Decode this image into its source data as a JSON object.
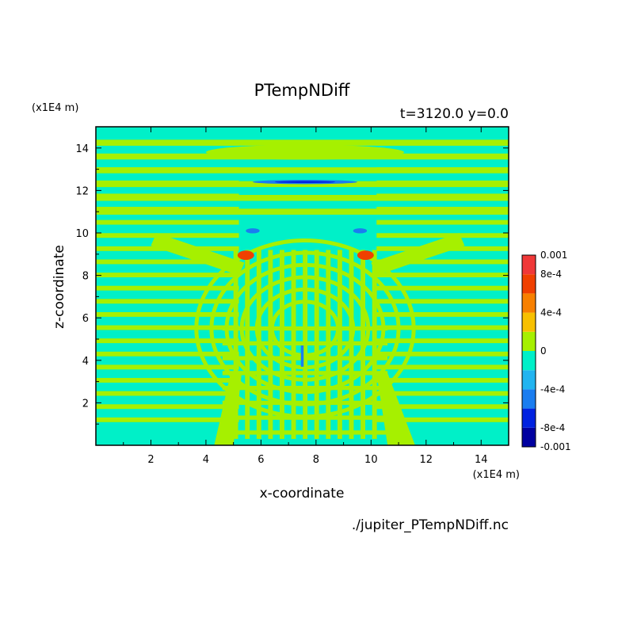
{
  "chart_data": {
    "type": "heatmap",
    "title": "PTempNDiff",
    "subtitle": "t=3120.0 y=0.0",
    "xlabel": "x-coordinate",
    "ylabel": "z-coordinate",
    "x_unit": "(x1E4 m)",
    "y_unit": "(x1E4 m)",
    "source_file": "./jupiter_PTempNDiff.nc",
    "xlim": [
      0,
      15
    ],
    "ylim": [
      0,
      15
    ],
    "x_ticks": [
      2,
      4,
      6,
      8,
      10,
      12,
      14
    ],
    "y_ticks": [
      2,
      4,
      6,
      8,
      10,
      12,
      14
    ],
    "colorbar": {
      "levels": [
        -0.001,
        -0.0008,
        -0.0006,
        -0.0004,
        -0.0002,
        0,
        0.0002,
        0.0004,
        0.0006,
        0.0008,
        0.001
      ],
      "colors": [
        "#0000a0",
        "#0022e0",
        "#1a7df0",
        "#22b4f0",
        "#00f0c8",
        "#a6f000",
        "#f8c000",
        "#f88000",
        "#f04000",
        "#f03838"
      ],
      "tick_labels": [
        "0.001",
        "8e-4",
        "4e-4",
        "0",
        "-4e-4",
        "-8e-4",
        "-0.001"
      ],
      "tick_values": [
        0.001,
        0.0008,
        0.0004,
        0,
        -0.0004,
        -0.0008,
        -0.001
      ]
    },
    "background_color": "#00f0c8",
    "positive_band_color": "#a6f000",
    "grid": false
  }
}
